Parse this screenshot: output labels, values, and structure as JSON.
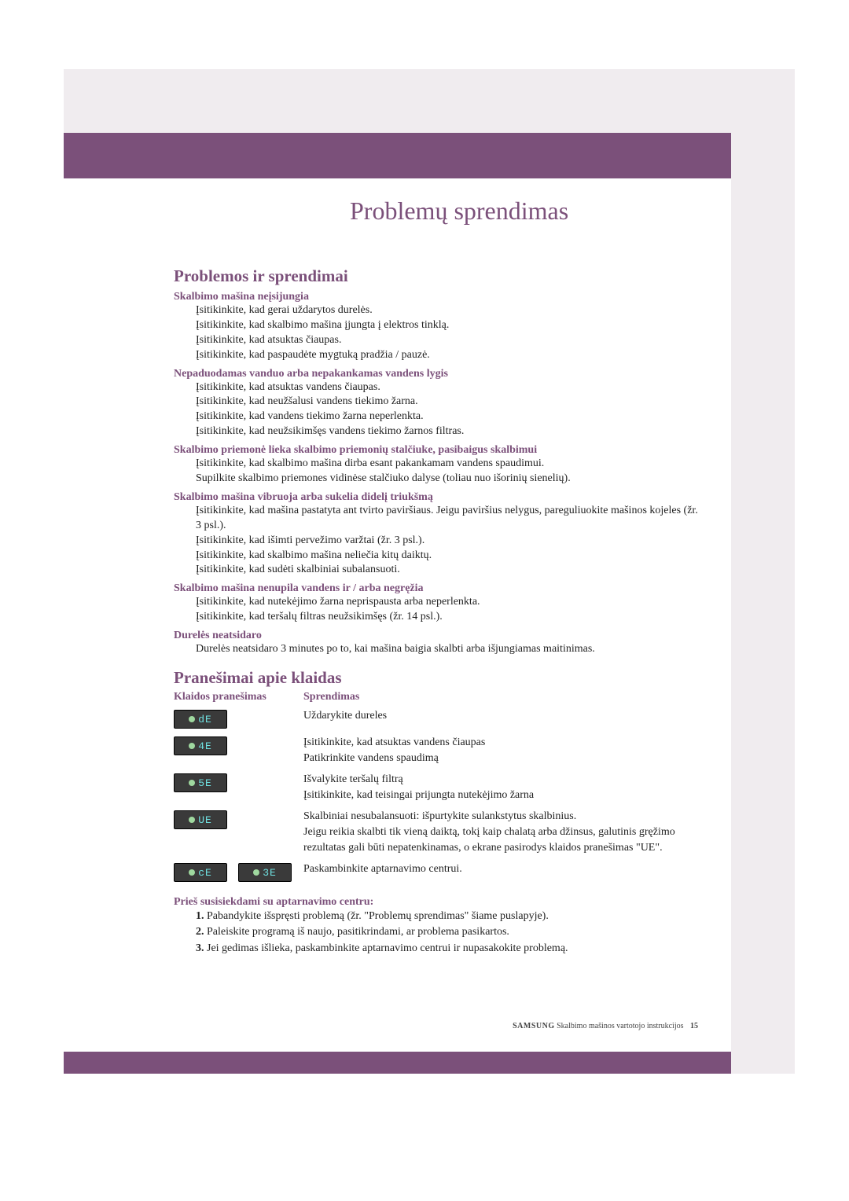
{
  "colors": {
    "purple": "#7b507a",
    "light": "#f0ecef",
    "badge_bg": "#3a3a3a",
    "badge_text": "#6fe0e0",
    "led": "#9fd89f",
    "body_text": "#222222"
  },
  "bannerTitle": "Problemų sprendimas",
  "section1": {
    "title": "Problemos ir sprendimai",
    "groups": [
      {
        "head": "Skalbimo mašina neįsijungia",
        "items": [
          "Įsitikinkite, kad gerai uždarytos durelės.",
          "Įsitikinkite, kad skalbimo mašina įjungta į elektros tinklą.",
          "Įsitikinkite, kad atsuktas čiaupas.",
          "Įsitikinkite, kad paspaudėte mygtuką pradžia / pauzė."
        ]
      },
      {
        "head": "Nepaduodamas vanduo arba nepakankamas vandens lygis",
        "items": [
          "Įsitikinkite, kad atsuktas vandens čiaupas.",
          "Įsitikinkite, kad neužšalusi vandens tiekimo žarna.",
          "Įsitikinkite, kad vandens tiekimo žarna neperlenkta.",
          "Įsitikinkite, kad neužsikimšęs vandens tiekimo žarnos filtras."
        ]
      },
      {
        "head": "Skalbimo priemonė lieka skalbimo priemonių stalčiuke, pasibaigus skalbimui",
        "items": [
          "Įsitikinkite, kad skalbimo mašina dirba esant pakankamam vandens spaudimui.",
          "Supilkite skalbimo priemones vidinėse stalčiuko dalyse (toliau nuo išorinių sienelių)."
        ]
      },
      {
        "head": "Skalbimo mašina vibruoja arba sukelia didelį triukšmą",
        "items": [
          "Įsitikinkite, kad mašina pastatyta ant tvirto paviršiaus. Jeigu paviršius nelygus, pareguliuokite mašinos kojeles (žr. 3 psl.).",
          "Įsitikinkite, kad išimti pervežimo varžtai (žr. 3 psl.).",
          "Įsitikinkite, kad skalbimo mašina neliečia kitų daiktų.",
          "Įsitikinkite, kad sudėti skalbiniai subalansuoti."
        ]
      },
      {
        "head": "Skalbimo mašina nenupila vandens ir / arba negręžia",
        "items": [
          "Įsitikinkite, kad nutekėjimo žarna neprispausta arba neperlenkta.",
          "Įsitikinkite, kad teršalų filtras neužsikimšęs (žr. 14 psl.)."
        ]
      },
      {
        "head": "Durelės neatsidaro",
        "items": [
          "Durelės neatsidaro 3 minutes po to, kai mašina baigia skalbti arba išjungiamas maitinimas."
        ]
      }
    ]
  },
  "section2": {
    "title": "Pranešimai apie klaidas",
    "headerCol1": "Klaidos pranešimas",
    "headerCol2": "Sprendimas",
    "rows": [
      {
        "codes": [
          "dE"
        ],
        "text": "Uždarykite dureles"
      },
      {
        "codes": [
          "4E"
        ],
        "text": "Įsitikinkite, kad atsuktas vandens čiaupas\nPatikrinkite vandens spaudimą"
      },
      {
        "codes": [
          "5E"
        ],
        "text": "Išvalykite teršalų filtrą\nĮsitikinkite, kad teisingai prijungta nutekėjimo žarna"
      },
      {
        "codes": [
          "UE"
        ],
        "text": "Skalbiniai nesubalansuoti: išpurtykite sulankstytus skalbinius.\nJeigu reikia skalbti tik vieną daiktą, tokį kaip chalatą arba džinsus, galutinis gręžimo rezultatas gali būti nepatenkinamas, o ekrane pasirodys klaidos pranešimas \"UE\"."
      },
      {
        "codes": [
          "cE",
          "3E"
        ],
        "text": "Paskambinkite aptarnavimo centrui."
      }
    ]
  },
  "beforeContact": {
    "head": "Prieš susisiekdami su aptarnavimo centru:",
    "items": [
      {
        "n": "1.",
        "text": "Pabandykite išspręsti problemą (žr. \"Problemų sprendimas\" šiame puslapyje)."
      },
      {
        "n": "2.",
        "text": "Paleiskite programą iš naujo, pasitikrindami, ar problema pasikartos."
      },
      {
        "n": "3.",
        "text": "Jei gedimas išlieka, paskambinkite aptarnavimo centrui ir nupasakokite problemą."
      }
    ]
  },
  "footer": {
    "brand": "SAMSUNG",
    "text": "Skalbimo mašinos vartotojo instrukcijos",
    "page": "15"
  }
}
